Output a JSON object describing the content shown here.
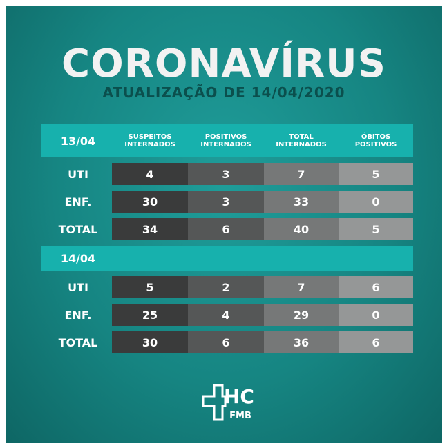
{
  "header": {
    "title": "CORONAVÍRUS",
    "subtitle": "ATUALIZAÇÃO DE 14/04/2020"
  },
  "table": {
    "columns": [
      [
        "SUSPEITOS",
        "INTERNADOS"
      ],
      [
        "POSITIVOS",
        "INTERNADOS"
      ],
      [
        "TOTAL",
        "INTERNADOS"
      ],
      [
        "ÓBITOS",
        "POSITIVOS"
      ]
    ],
    "sections": [
      {
        "date": "13/04",
        "rows": [
          {
            "label": "UTI",
            "values": [
              4,
              3,
              7,
              5
            ]
          },
          {
            "label": "ENF.",
            "values": [
              30,
              3,
              33,
              0
            ]
          },
          {
            "label": "TOTAL",
            "values": [
              34,
              6,
              40,
              5
            ]
          }
        ]
      },
      {
        "date": "14/04",
        "rows": [
          {
            "label": "UTI",
            "values": [
              5,
              2,
              7,
              6
            ]
          },
          {
            "label": "ENF.",
            "values": [
              25,
              4,
              29,
              0
            ]
          },
          {
            "label": "TOTAL",
            "values": [
              30,
              6,
              36,
              6
            ]
          }
        ]
      }
    ]
  },
  "logo": {
    "text": "HC",
    "subtext": "FMB"
  }
}
